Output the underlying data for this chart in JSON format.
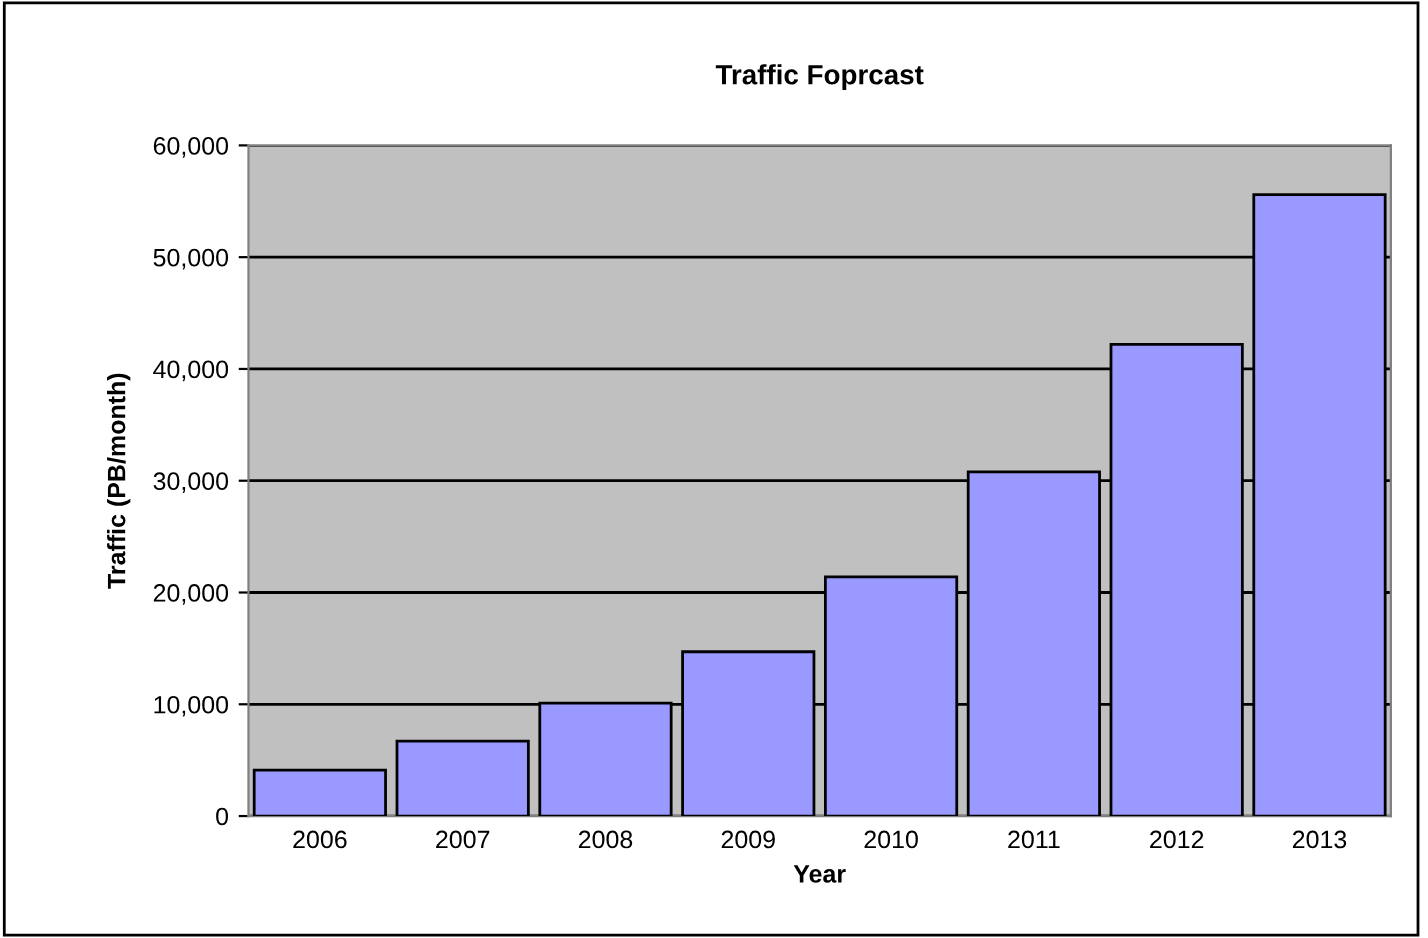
{
  "chart_data": {
    "type": "bar",
    "title": "Traffic Foprcast",
    "xlabel": "Year",
    "ylabel": "Traffic (PB/month)",
    "categories": [
      "2006",
      "2007",
      "2008",
      "2009",
      "2010",
      "2011",
      "2012",
      "2013"
    ],
    "values": [
      4100,
      6700,
      10100,
      14700,
      21400,
      30800,
      42200,
      55600
    ],
    "color": "#9999ff",
    "ylim": [
      0,
      60000
    ],
    "yticks": [
      0,
      {
        "value": 10000,
        "label": "10,000"
      },
      {
        "value": 20000,
        "label": "20,000"
      },
      {
        "value": 30000,
        "label": "30,000"
      },
      {
        "value": 40000,
        "label": "40,000"
      },
      {
        "value": 50000,
        "label": "50,000"
      },
      {
        "value": 60000,
        "label": "60,000"
      }
    ],
    "grid": "y"
  }
}
